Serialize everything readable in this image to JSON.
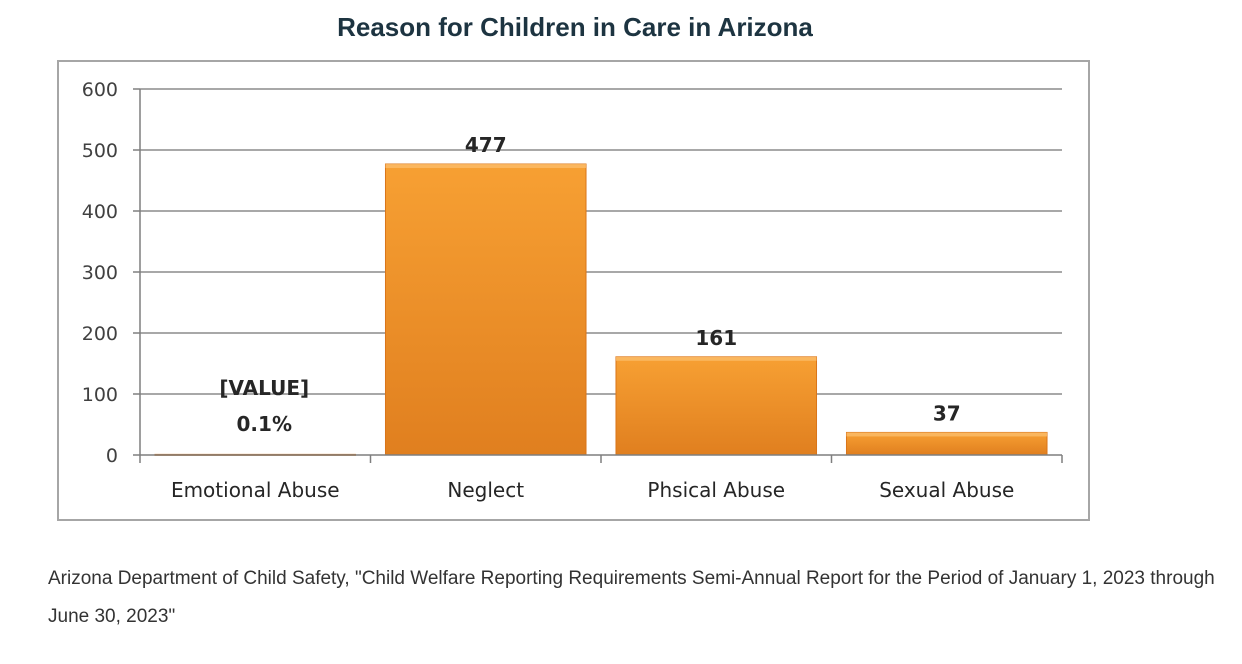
{
  "title": "Reason for Children in Care in Arizona",
  "source": "Arizona Department of Child Safety, \"Child Welfare Reporting Requirements Semi-Annual Report for the Period of January 1, 2023 through June 30, 2023\"",
  "colors": {
    "bar_top": "#f7a033",
    "bar_bottom": "#e07f1f",
    "gridline": "#8c8c8c"
  },
  "chart_data": {
    "type": "bar",
    "title": "",
    "xlabel": "",
    "ylabel": "",
    "categories": [
      "Emotional Abuse",
      "Neglect",
      "Phsical Abuse",
      "Sexual Abuse"
    ],
    "values": [
      1,
      477,
      161,
      37
    ],
    "data_labels": [
      [
        "[VALUE]",
        "0.1%"
      ],
      [
        "477"
      ],
      [
        "161"
      ],
      [
        "37"
      ]
    ],
    "ylim": [
      0,
      600
    ],
    "yticks": [
      0,
      100,
      200,
      300,
      400,
      500,
      600
    ],
    "grid": true,
    "legend": "none"
  }
}
